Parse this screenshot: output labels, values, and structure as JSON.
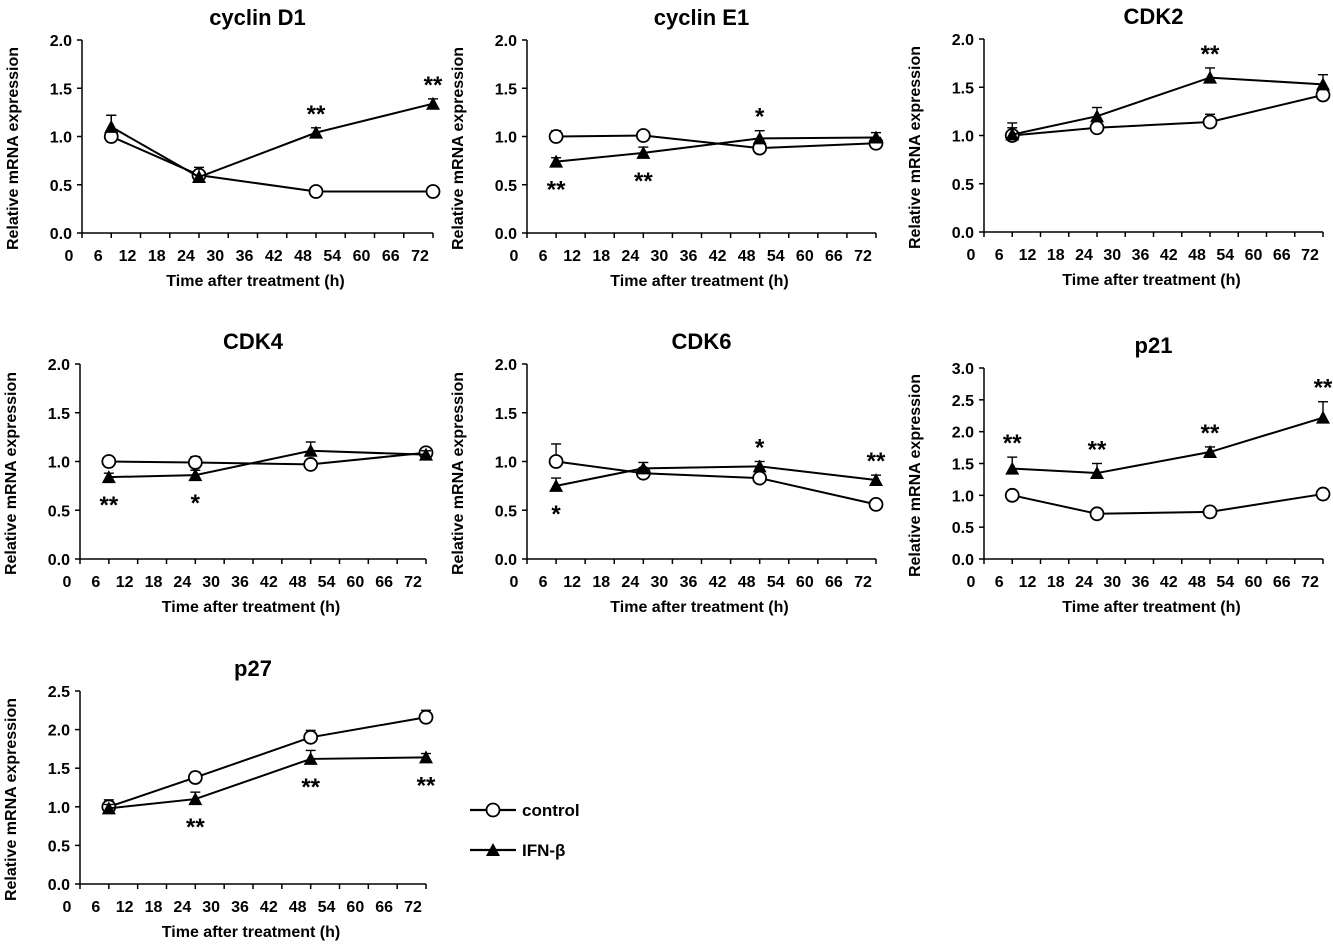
{
  "legend": {
    "placement": "right of bottom-left panel",
    "entries": [
      {
        "label": "control",
        "marker": "open-circle"
      },
      {
        "label": "IFN-β",
        "marker": "filled-triangle"
      }
    ]
  },
  "colors": {
    "line": "#000000",
    "background": "#ffffff"
  },
  "chart_data": [
    {
      "type": "line",
      "title": "cyclin D1",
      "xlabel": "Time after treatment (h)",
      "ylabel": "Relative mRNA expression",
      "xlim": [
        0,
        72
      ],
      "xticks": [
        0,
        6,
        12,
        18,
        24,
        30,
        36,
        42,
        48,
        54,
        60,
        66,
        72
      ],
      "ylim": [
        0,
        2
      ],
      "yticks": [
        "0.0",
        "0.5",
        "1.0",
        "1.5",
        "2.0"
      ],
      "x": [
        6,
        24,
        48,
        72
      ],
      "series": [
        {
          "name": "control",
          "values": [
            1.0,
            0.6,
            0.43,
            0.43
          ],
          "err": [
            0.22,
            0.05,
            0.02,
            0.02
          ]
        },
        {
          "name": "IFN-β",
          "values": [
            1.1,
            0.58,
            1.04,
            1.34
          ],
          "err": [
            0.12,
            0.1,
            0.05,
            0.05
          ]
        }
      ],
      "annotations": [
        {
          "x": 48,
          "series": "IFN-β",
          "pos": "above",
          "text": "**"
        },
        {
          "x": 72,
          "series": "IFN-β",
          "pos": "above",
          "text": "**"
        }
      ]
    },
    {
      "type": "line",
      "title": "cyclin E1",
      "xlabel": "Time after treatment (h)",
      "ylabel": "Relative mRNA expression",
      "xlim": [
        0,
        72
      ],
      "xticks": [
        0,
        6,
        12,
        18,
        24,
        30,
        36,
        42,
        48,
        54,
        60,
        66,
        72
      ],
      "ylim": [
        0,
        2
      ],
      "yticks": [
        "0.0",
        "0.5",
        "1.0",
        "1.5",
        "2.0"
      ],
      "x": [
        6,
        24,
        48,
        72
      ],
      "series": [
        {
          "name": "control",
          "values": [
            1.0,
            1.01,
            0.88,
            0.93
          ],
          "err": [
            0.06,
            0.03,
            0.04,
            0.06
          ]
        },
        {
          "name": "IFN-β",
          "values": [
            0.74,
            0.83,
            0.98,
            0.99
          ],
          "err": [
            0.04,
            0.06,
            0.08,
            0.05
          ]
        }
      ],
      "annotations": [
        {
          "x": 6,
          "series": "IFN-β",
          "pos": "below",
          "text": "**"
        },
        {
          "x": 24,
          "series": "IFN-β",
          "pos": "below",
          "text": "**"
        },
        {
          "x": 48,
          "series": "IFN-β",
          "pos": "above",
          "text": "*"
        }
      ]
    },
    {
      "type": "line",
      "title": "CDK2",
      "xlabel": "Time after treatment (h)",
      "ylabel": "Relative mRNA expression",
      "xlim": [
        0,
        72
      ],
      "xticks": [
        0,
        6,
        12,
        18,
        24,
        30,
        36,
        42,
        48,
        54,
        60,
        66,
        72
      ],
      "ylim": [
        0,
        2
      ],
      "yticks": [
        "0.0",
        "0.5",
        "1.0",
        "1.5",
        "2.0"
      ],
      "x": [
        6,
        24,
        48,
        72
      ],
      "series": [
        {
          "name": "control",
          "values": [
            1.0,
            1.08,
            1.14,
            1.42
          ],
          "err": [
            0.08,
            0.08,
            0.08,
            0.04
          ]
        },
        {
          "name": "IFN-β",
          "values": [
            1.01,
            1.2,
            1.6,
            1.53
          ],
          "err": [
            0.12,
            0.09,
            0.1,
            0.1
          ]
        }
      ],
      "annotations": [
        {
          "x": 48,
          "series": "IFN-β",
          "pos": "above",
          "text": "**"
        }
      ]
    },
    {
      "type": "line",
      "title": "CDK4",
      "xlabel": "Time after treatment (h)",
      "ylabel": "Relative mRNA expression",
      "xlim": [
        0,
        72
      ],
      "xticks": [
        0,
        6,
        12,
        18,
        24,
        30,
        36,
        42,
        48,
        54,
        60,
        66,
        72
      ],
      "ylim": [
        0,
        2
      ],
      "yticks": [
        "0.0",
        "0.5",
        "1.0",
        "1.5",
        "2.0"
      ],
      "x": [
        6,
        24,
        48,
        72
      ],
      "series": [
        {
          "name": "control",
          "values": [
            1.0,
            0.99,
            0.97,
            1.09
          ],
          "err": [
            0.05,
            0.06,
            0.04,
            0.03
          ]
        },
        {
          "name": "IFN-β",
          "values": [
            0.84,
            0.86,
            1.11,
            1.07
          ],
          "err": [
            0.04,
            0.05,
            0.09,
            0.04
          ]
        }
      ],
      "annotations": [
        {
          "x": 6,
          "series": "IFN-β",
          "pos": "below",
          "text": "**"
        },
        {
          "x": 24,
          "series": "IFN-β",
          "pos": "below",
          "text": "*"
        }
      ]
    },
    {
      "type": "line",
      "title": "CDK6",
      "xlabel": "Time after treatment (h)",
      "ylabel": "Relative mRNA expression",
      "xlim": [
        0,
        72
      ],
      "xticks": [
        0,
        6,
        12,
        18,
        24,
        30,
        36,
        42,
        48,
        54,
        60,
        66,
        72
      ],
      "ylim": [
        0,
        2
      ],
      "yticks": [
        "0.0",
        "0.5",
        "1.0",
        "1.5",
        "2.0"
      ],
      "x": [
        6,
        24,
        48,
        72
      ],
      "series": [
        {
          "name": "control",
          "values": [
            1.0,
            0.88,
            0.83,
            0.56
          ],
          "err": [
            0.18,
            0.03,
            0.04,
            0.02
          ]
        },
        {
          "name": "IFN-β",
          "values": [
            0.75,
            0.93,
            0.95,
            0.81
          ],
          "err": [
            0.08,
            0.06,
            0.05,
            0.05
          ]
        }
      ],
      "annotations": [
        {
          "x": 6,
          "series": "IFN-β",
          "pos": "below",
          "text": "*"
        },
        {
          "x": 48,
          "series": "IFN-β",
          "pos": "above",
          "text": "*"
        },
        {
          "x": 72,
          "series": "IFN-β",
          "pos": "above",
          "text": "**"
        }
      ]
    },
    {
      "type": "line",
      "title": "p21",
      "xlabel": "Time after treatment (h)",
      "ylabel": "Relative mRNA expression",
      "xlim": [
        0,
        72
      ],
      "xticks": [
        0,
        6,
        12,
        18,
        24,
        30,
        36,
        42,
        48,
        54,
        60,
        66,
        72
      ],
      "ylim": [
        0,
        3
      ],
      "yticks": [
        "0.0",
        "0.5",
        "1.0",
        "1.5",
        "2.0",
        "2.5",
        "3.0"
      ],
      "x": [
        6,
        24,
        48,
        72
      ],
      "series": [
        {
          "name": "control",
          "values": [
            1.0,
            0.71,
            0.74,
            1.02
          ],
          "err": [
            0.04,
            0.03,
            0.03,
            0.04
          ]
        },
        {
          "name": "IFN-β",
          "values": [
            1.42,
            1.35,
            1.68,
            2.22
          ],
          "err": [
            0.18,
            0.15,
            0.08,
            0.25
          ]
        }
      ],
      "annotations": [
        {
          "x": 6,
          "series": "IFN-β",
          "pos": "above",
          "text": "**"
        },
        {
          "x": 24,
          "series": "IFN-β",
          "pos": "above",
          "text": "**"
        },
        {
          "x": 48,
          "series": "IFN-β",
          "pos": "above",
          "text": "**"
        },
        {
          "x": 72,
          "series": "IFN-β",
          "pos": "above",
          "text": "**"
        }
      ]
    },
    {
      "type": "line",
      "title": "p27",
      "xlabel": "Time after treatment (h)",
      "ylabel": "Relative mRNA expression",
      "xlim": [
        0,
        72
      ],
      "xticks": [
        0,
        6,
        12,
        18,
        24,
        30,
        36,
        42,
        48,
        54,
        60,
        66,
        72
      ],
      "ylim": [
        0,
        2.5
      ],
      "yticks": [
        "0.0",
        "0.5",
        "1.0",
        "1.5",
        "2.0",
        "2.5"
      ],
      "x": [
        6,
        24,
        48,
        72
      ],
      "series": [
        {
          "name": "control",
          "values": [
            1.0,
            1.38,
            1.9,
            2.16
          ],
          "err": [
            0.09,
            0.07,
            0.09,
            0.09
          ]
        },
        {
          "name": "IFN-β",
          "values": [
            0.98,
            1.1,
            1.62,
            1.64
          ],
          "err": [
            0.05,
            0.09,
            0.11,
            0.05
          ]
        }
      ],
      "annotations": [
        {
          "x": 24,
          "series": "IFN-β",
          "pos": "below",
          "text": "**"
        },
        {
          "x": 48,
          "series": "IFN-β",
          "pos": "below",
          "text": "**"
        },
        {
          "x": 72,
          "series": "IFN-β",
          "pos": "below",
          "text": "**"
        }
      ]
    }
  ]
}
